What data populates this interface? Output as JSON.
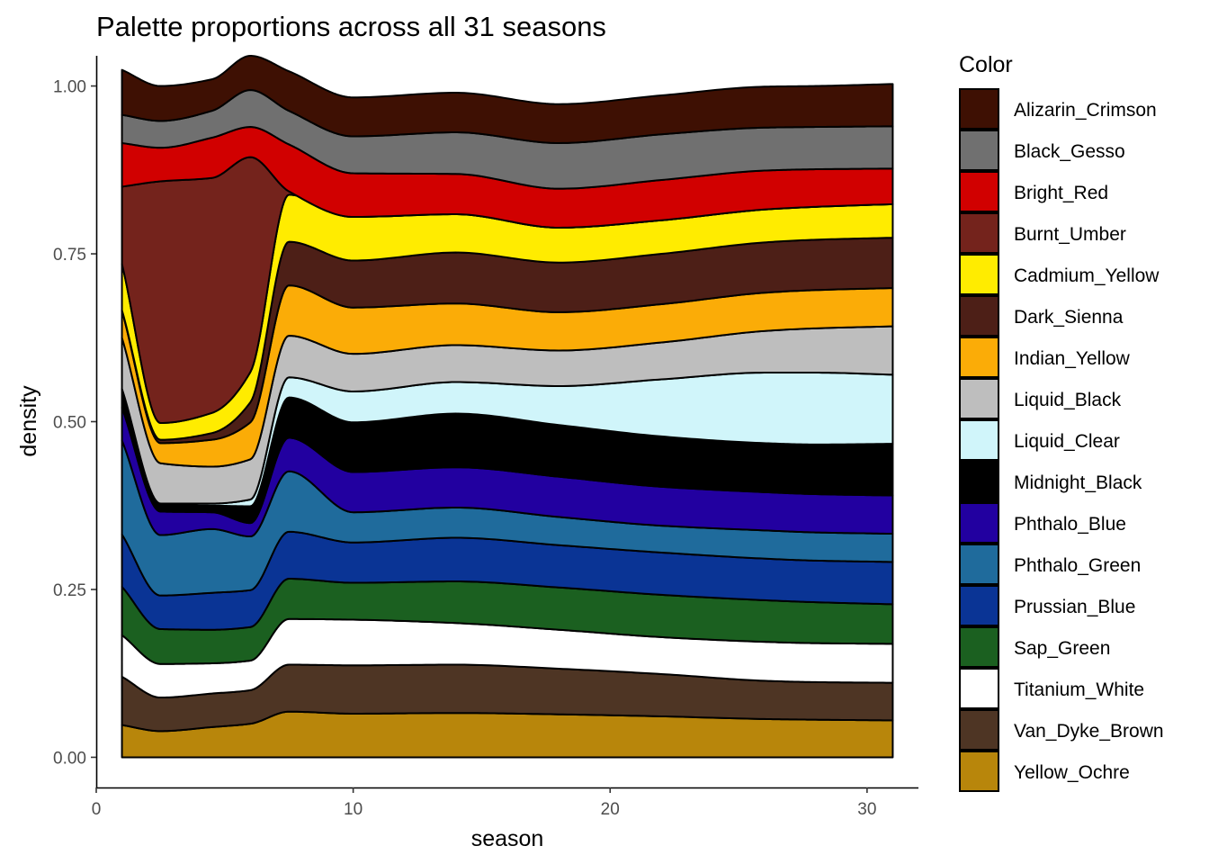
{
  "chart_data": {
    "type": "area",
    "title": "Palette proportions across all 31 seasons",
    "xlabel": "season",
    "ylabel": "density",
    "xlim": [
      0,
      32
    ],
    "ylim": [
      -0.045,
      1.045
    ],
    "x_ticks": [
      0,
      10,
      20,
      30
    ],
    "y_ticks": [
      0,
      0.25,
      0.5,
      0.75,
      1
    ],
    "x_tick_labels": [
      "0",
      "10",
      "20",
      "30"
    ],
    "y_tick_labels": [
      "0.00",
      "0.25",
      "0.50",
      "0.75",
      "1.00"
    ],
    "grid": false,
    "legend": {
      "title": "Color",
      "position": "right"
    },
    "x": [
      1,
      2.5,
      4.5,
      6,
      7.5,
      10,
      14,
      18,
      22,
      26,
      28,
      31
    ],
    "series": [
      {
        "name": "Yellow_Ochre",
        "color": "#B8860B",
        "values": [
          0.048,
          0.039,
          0.045,
          0.05,
          0.068,
          0.065,
          0.066,
          0.064,
          0.061,
          0.057,
          0.056,
          0.055
        ]
      },
      {
        "name": "Van_Dyke_Brown",
        "color": "#4E3524",
        "values": [
          0.072,
          0.05,
          0.05,
          0.05,
          0.07,
          0.072,
          0.072,
          0.068,
          0.063,
          0.057,
          0.056,
          0.056
        ]
      },
      {
        "name": "Titanium_White",
        "color": "#FFFFFF",
        "values": [
          0.062,
          0.05,
          0.045,
          0.044,
          0.068,
          0.068,
          0.062,
          0.058,
          0.055,
          0.058,
          0.058,
          0.058
        ]
      },
      {
        "name": "Sap_Green",
        "color": "#1B6020",
        "values": [
          0.072,
          0.052,
          0.05,
          0.05,
          0.06,
          0.055,
          0.062,
          0.063,
          0.063,
          0.062,
          0.061,
          0.059
        ]
      },
      {
        "name": "Prussian_Blue",
        "color": "#0A3495",
        "values": [
          0.078,
          0.05,
          0.055,
          0.055,
          0.07,
          0.06,
          0.065,
          0.063,
          0.063,
          0.062,
          0.062,
          0.063
        ]
      },
      {
        "name": "Phthalo_Green",
        "color": "#1F6B9C",
        "values": [
          0.14,
          0.09,
          0.095,
          0.08,
          0.09,
          0.045,
          0.045,
          0.042,
          0.04,
          0.042,
          0.042,
          0.042
        ]
      },
      {
        "name": "Phthalo_Blue",
        "color": "#2200A0",
        "values": [
          0.049,
          0.035,
          0.025,
          0.02,
          0.05,
          0.06,
          0.06,
          0.06,
          0.058,
          0.057,
          0.057,
          0.057
        ]
      },
      {
        "name": "Midnight_Black",
        "color": "#000000",
        "values": [
          0.027,
          0.01,
          0.01,
          0.025,
          0.06,
          0.074,
          0.08,
          0.077,
          0.075,
          0.073,
          0.074,
          0.077
        ]
      },
      {
        "name": "Liquid_Clear",
        "color": "#D0F5FA",
        "values": [
          0.001,
          0.002,
          0.003,
          0.01,
          0.03,
          0.046,
          0.047,
          0.058,
          0.085,
          0.105,
          0.107,
          0.103
        ]
      },
      {
        "name": "Liquid_Black",
        "color": "#BEBEBE",
        "values": [
          0.076,
          0.06,
          0.055,
          0.06,
          0.062,
          0.056,
          0.055,
          0.053,
          0.055,
          0.062,
          0.066,
          0.072
        ]
      },
      {
        "name": "Indian_Yellow",
        "color": "#FBAC07",
        "values": [
          0.04,
          0.03,
          0.04,
          0.055,
          0.075,
          0.069,
          0.062,
          0.057,
          0.057,
          0.057,
          0.057,
          0.057
        ]
      },
      {
        "name": "Dark_Sienna",
        "color": "#4D1F17",
        "values": [
          0.001,
          0.005,
          0.01,
          0.03,
          0.065,
          0.07,
          0.076,
          0.074,
          0.075,
          0.075,
          0.075,
          0.075
        ]
      },
      {
        "name": "Cadmium_Yellow",
        "color": "#FFEC00",
        "values": [
          0.069,
          0.025,
          0.03,
          0.045,
          0.07,
          0.065,
          0.057,
          0.052,
          0.05,
          0.049,
          0.049,
          0.05
        ]
      },
      {
        "name": "Burnt_Umber",
        "color": "#74231C",
        "values": [
          0.115,
          0.36,
          0.35,
          0.32,
          0.005,
          0.0,
          0.0,
          0.0,
          0.0,
          0.0,
          0.0,
          0.0
        ]
      },
      {
        "name": "Bright_Red",
        "color": "#D10000",
        "values": [
          0.065,
          0.05,
          0.06,
          0.045,
          0.07,
          0.065,
          0.06,
          0.058,
          0.06,
          0.058,
          0.056,
          0.053
        ]
      },
      {
        "name": "Black_Gesso",
        "color": "#707070",
        "values": [
          0.042,
          0.04,
          0.04,
          0.055,
          0.05,
          0.055,
          0.062,
          0.068,
          0.068,
          0.064,
          0.063,
          0.063
        ]
      },
      {
        "name": "Alizarin_Crimson",
        "color": "#3E1003",
        "values": [
          0.067,
          0.052,
          0.047,
          0.051,
          0.059,
          0.058,
          0.059,
          0.058,
          0.058,
          0.061,
          0.061,
          0.063
        ]
      }
    ]
  }
}
